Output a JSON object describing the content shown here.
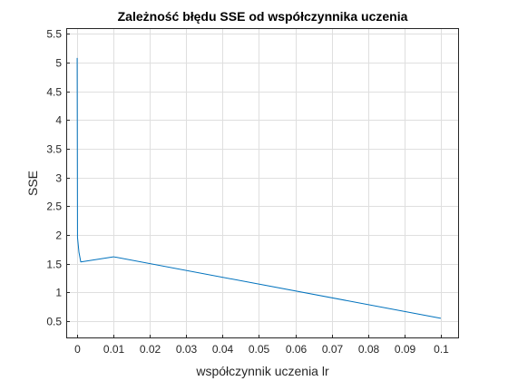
{
  "chart_data": {
    "type": "line",
    "title": "Zależność błędu SSE od współczynnika uczenia",
    "xlabel": "współczynnik uczenia lr",
    "ylabel": "SSE",
    "xlim": [
      -0.003,
      0.105
    ],
    "ylim": [
      0.2,
      5.6
    ],
    "xticks": [
      0,
      0.01,
      0.02,
      0.03,
      0.04,
      0.05,
      0.06,
      0.07,
      0.08,
      0.09,
      0.1
    ],
    "xtick_labels": [
      "0",
      "0.01",
      "0.02",
      "0.03",
      "0.04",
      "0.05",
      "0.06",
      "0.07",
      "0.08",
      "0.09",
      "0.1"
    ],
    "yticks": [
      0.5,
      1,
      1.5,
      2,
      2.5,
      3,
      3.5,
      4,
      4.5,
      5,
      5.5
    ],
    "ytick_labels": [
      "0.5",
      "1",
      "1.5",
      "2",
      "2.5",
      "3",
      "3.5",
      "4",
      "4.5",
      "5",
      "5.5"
    ],
    "grid": true,
    "series": [
      {
        "color": "#0072BD",
        "x": [
          1e-05,
          0.0001,
          0.0005,
          0.001,
          0.01,
          0.1
        ],
        "y": [
          5.08,
          1.96,
          1.7,
          1.53,
          1.62,
          0.55
        ]
      }
    ]
  }
}
